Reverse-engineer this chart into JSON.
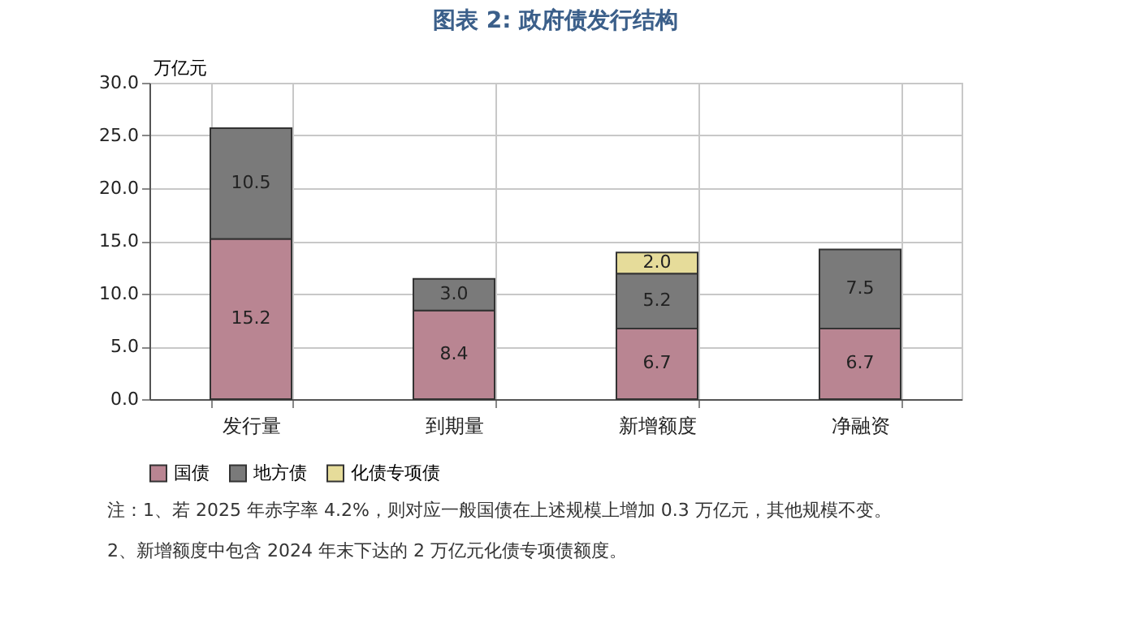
{
  "chart_data": {
    "type": "bar",
    "title": "图表 2:  政府债发行结构",
    "ylabel": "万亿元",
    "categories": [
      "发行量",
      "到期量",
      "新增额度",
      "净融资"
    ],
    "series": [
      {
        "name": "国债",
        "color": "#b98592",
        "values": [
          15.2,
          8.4,
          6.7,
          6.7
        ],
        "value_labels": [
          "15.2",
          "8.4",
          "6.7",
          "6.7"
        ]
      },
      {
        "name": "地方债",
        "color": "#7a7a7a",
        "values": [
          10.5,
          3.0,
          5.2,
          7.5
        ],
        "value_labels": [
          "10.5",
          "3.0",
          "5.2",
          "7.5"
        ]
      },
      {
        "name": "化债专项债",
        "color": "#e6dc9a",
        "values": [
          null,
          null,
          2.0,
          null
        ],
        "value_labels": [
          null,
          null,
          "2.0",
          null
        ]
      }
    ],
    "stacked": true,
    "grid": true,
    "legend": "bottom",
    "ylim": [
      0,
      30
    ],
    "yticks": [
      {
        "value": 0,
        "label": "0.0"
      },
      {
        "value": 5,
        "label": "5.0"
      },
      {
        "value": 10,
        "label": "10.0"
      },
      {
        "value": 15,
        "label": "15.0"
      },
      {
        "value": 20,
        "label": "20.0"
      },
      {
        "value": 25,
        "label": "25.0"
      },
      {
        "value": 30,
        "label": "30.0"
      }
    ],
    "annotations": [
      "注：1、若 2025 年赤字率 4.2%，则对应一般国债在上述规模上增加 0.3 万亿元，其他规模不变。",
      "2、新增额度中包含 2024 年末下达的 2 万亿元化债专项债额度。"
    ]
  }
}
